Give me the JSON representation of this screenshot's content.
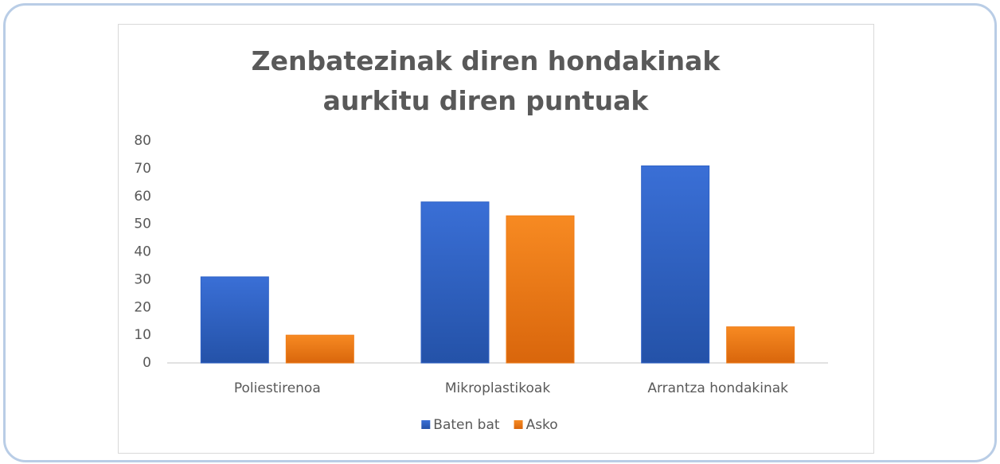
{
  "chart_data": {
    "type": "bar",
    "title": "Zenbatezinak diren hondakinak aurkitu diren puntuak",
    "categories": [
      "Poliestirenoa",
      "Mikroplastikoak",
      "Arrantza hondakinak"
    ],
    "series": [
      {
        "name": "Baten bat",
        "color": "#2f62c6",
        "values": [
          31,
          58,
          71
        ]
      },
      {
        "name": "Asko",
        "color": "#f07d18",
        "values": [
          10,
          53,
          13
        ]
      }
    ],
    "ylim": [
      0,
      80
    ],
    "yticks": [
      0,
      10,
      20,
      30,
      40,
      50,
      60,
      70,
      80
    ],
    "grid": false,
    "legend": "bottom"
  }
}
